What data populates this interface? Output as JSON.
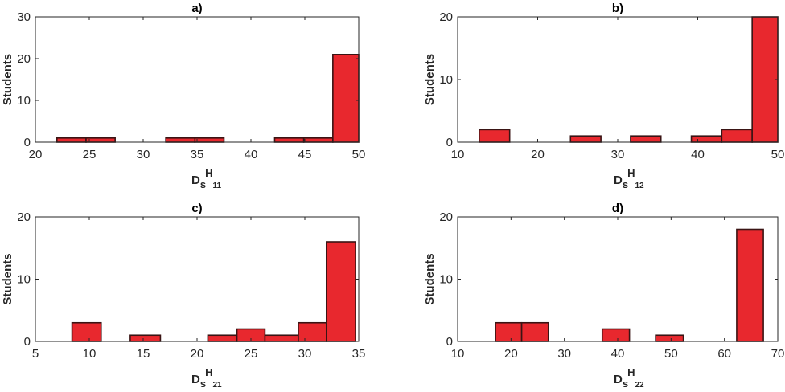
{
  "chart_data": [
    {
      "type": "bar",
      "title": "a)",
      "ylabel": "Students",
      "xlabel": {
        "base": "D",
        "sub": "s",
        "sup": "H",
        "subsub": "11"
      },
      "xlim": [
        20,
        50
      ],
      "ylim": [
        0,
        30
      ],
      "xticks": [
        "20",
        "25",
        "30",
        "35",
        "40",
        "45",
        "50"
      ],
      "yticks": [
        "0",
        "10",
        "20",
        "30"
      ],
      "bins": [
        {
          "x0": 22.0,
          "x1": 24.7,
          "value": 1
        },
        {
          "x0": 24.7,
          "x1": 27.4,
          "value": 1
        },
        {
          "x0": 32.1,
          "x1": 34.8,
          "value": 1
        },
        {
          "x0": 34.8,
          "x1": 37.5,
          "value": 1
        },
        {
          "x0": 42.2,
          "x1": 44.9,
          "value": 1
        },
        {
          "x0": 44.9,
          "x1": 47.6,
          "value": 1
        },
        {
          "x0": 47.6,
          "x1": 50.0,
          "value": 21
        }
      ]
    },
    {
      "type": "bar",
      "title": "b)",
      "ylabel": "Students",
      "xlabel": {
        "base": "D",
        "sub": "s",
        "sup": "H",
        "subsub": "12"
      },
      "xlim": [
        10,
        50
      ],
      "ylim": [
        0,
        20
      ],
      "xticks": [
        "10",
        "20",
        "30",
        "40",
        "50"
      ],
      "yticks": [
        "0",
        "10",
        "20"
      ],
      "bins": [
        {
          "x0": 12.7,
          "x1": 16.5,
          "value": 2
        },
        {
          "x0": 24.1,
          "x1": 27.9,
          "value": 1
        },
        {
          "x0": 31.6,
          "x1": 35.4,
          "value": 1
        },
        {
          "x0": 39.2,
          "x1": 43.0,
          "value": 1
        },
        {
          "x0": 43.0,
          "x1": 46.8,
          "value": 2
        },
        {
          "x0": 46.8,
          "x1": 50.0,
          "value": 20
        }
      ]
    },
    {
      "type": "bar",
      "title": "c)",
      "ylabel": "Students",
      "xlabel": {
        "base": "D",
        "sub": "s",
        "sup": "H",
        "subsub": "21"
      },
      "xlim": [
        5,
        35
      ],
      "ylim": [
        0,
        20
      ],
      "xticks": [
        "5",
        "10",
        "15",
        "20",
        "25",
        "30",
        "35"
      ],
      "yticks": [
        "0",
        "10",
        "20"
      ],
      "bins": [
        {
          "x0": 8.4,
          "x1": 11.1,
          "value": 3
        },
        {
          "x0": 13.8,
          "x1": 16.6,
          "value": 1
        },
        {
          "x0": 21.0,
          "x1": 23.7,
          "value": 1
        },
        {
          "x0": 23.7,
          "x1": 26.3,
          "value": 2
        },
        {
          "x0": 26.3,
          "x1": 29.4,
          "value": 1
        },
        {
          "x0": 29.4,
          "x1": 32.0,
          "value": 3
        },
        {
          "x0": 32.0,
          "x1": 34.7,
          "value": 16
        }
      ]
    },
    {
      "type": "bar",
      "title": "d)",
      "ylabel": "Students",
      "xlabel": {
        "base": "D",
        "sub": "s",
        "sup": "H",
        "subsub": "22"
      },
      "xlim": [
        10,
        70
      ],
      "ylim": [
        0,
        20
      ],
      "xticks": [
        "10",
        "20",
        "30",
        "40",
        "50",
        "60",
        "70"
      ],
      "yticks": [
        "0",
        "10",
        "20"
      ],
      "bins": [
        {
          "x0": 17.1,
          "x1": 22.0,
          "value": 3
        },
        {
          "x0": 22.0,
          "x1": 27.0,
          "value": 3
        },
        {
          "x0": 37.1,
          "x1": 42.2,
          "value": 2
        },
        {
          "x0": 47.1,
          "x1": 52.3,
          "value": 1
        },
        {
          "x0": 62.3,
          "x1": 67.3,
          "value": 18
        }
      ]
    }
  ],
  "colors": {
    "bar_fill": "#e8282e",
    "bar_edge": "#3a1414",
    "axis": "#262626"
  }
}
